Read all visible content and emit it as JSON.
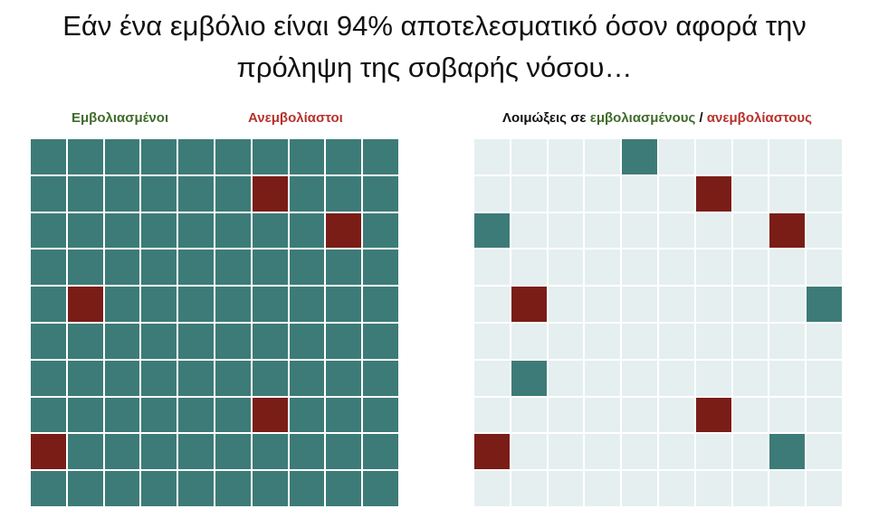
{
  "title": {
    "line1": "Εάν ένα εμβόλιο είναι 94% αποτελεσματικό όσον αφορά την",
    "line2": "πρόληψη της σοβαρής νόσου…"
  },
  "legend_left": {
    "vaccinated": "Εμβολιασμένοι",
    "unvaccinated": "Ανεμβολίαστοι"
  },
  "legend_right": {
    "prefix": "Λοιμώξεις σε ",
    "vaccinated": "εμβολιασμένους",
    "separator": " / ",
    "unvaccinated": "ανεμβολίαστους"
  },
  "colors": {
    "vaccinated": "#3d7b78",
    "unvaccinated": "#7a1d17",
    "empty": "#e5eff0",
    "vaccinated_label": "#3f6b2a",
    "unvaccinated_label": "#b8302b"
  },
  "grid_size": [
    10,
    10
  ],
  "population_grid": {
    "unvaccinated_cells": [
      [
        1,
        6
      ],
      [
        2,
        8
      ],
      [
        4,
        1
      ],
      [
        7,
        6
      ],
      [
        8,
        0
      ]
    ]
  },
  "infections_grid": {
    "vaccinated_cells": [
      [
        0,
        4
      ],
      [
        2,
        0
      ],
      [
        4,
        9
      ],
      [
        6,
        1
      ],
      [
        8,
        8
      ]
    ],
    "unvaccinated_cells": [
      [
        1,
        6
      ],
      [
        2,
        8
      ],
      [
        4,
        1
      ],
      [
        7,
        6
      ],
      [
        8,
        0
      ]
    ]
  }
}
